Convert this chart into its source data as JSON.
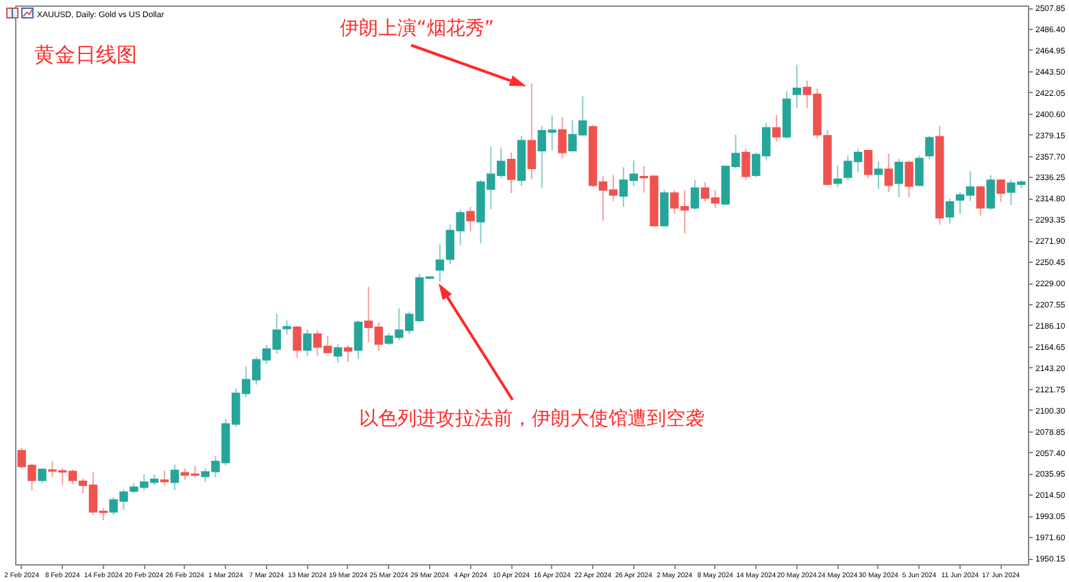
{
  "chart_data": {
    "type": "candlestick",
    "title": "XAUUSD, Daily: Gold vs US Dollar",
    "annotations": [
      "黄金日线图",
      "伊朗上演“烟花秀”",
      "以色列进攻拉法前，伊朗大使馆遭到空袭"
    ],
    "categories": [
      "2 Feb 2024",
      null,
      null,
      null,
      "8 Feb 2024",
      null,
      null,
      null,
      "14 Feb 2024",
      null,
      null,
      null,
      "20 Feb 2024",
      null,
      null,
      null,
      "26 Feb 2024",
      null,
      null,
      null,
      "1 Mar 2024",
      null,
      null,
      null,
      "7 Mar 2024",
      null,
      null,
      null,
      "13 Mar 2024",
      null,
      null,
      null,
      "19 Mar 2024",
      null,
      null,
      null,
      "25 Mar 2024",
      null,
      null,
      null,
      "29 Mar 2024",
      null,
      null,
      null,
      "4 Apr 2024",
      null,
      null,
      null,
      "10 Apr 2024",
      null,
      null,
      null,
      "16 Apr 2024",
      null,
      null,
      null,
      "22 Apr 2024",
      null,
      null,
      null,
      "26 Apr 2024",
      null,
      null,
      null,
      "2 May 2024",
      null,
      null,
      null,
      "8 May 2024",
      null,
      null,
      null,
      "14 May 2024",
      null,
      null,
      null,
      "20 May 2024",
      null,
      null,
      null,
      "24 May 2024",
      null,
      null,
      null,
      "30 May 2024",
      null,
      null,
      null,
      "5 Jun 2024",
      null,
      null,
      null,
      "11 Jun 2024",
      null,
      null,
      null,
      "17 Jun 2024",
      null,
      null
    ],
    "ohlc": [
      [
        2059,
        2062,
        2041,
        2043
      ],
      [
        2044,
        2046,
        2019,
        2029
      ],
      [
        2029,
        2041,
        2026,
        2040
      ],
      [
        2039.4,
        2048.2,
        2031.9,
        2038.5
      ],
      [
        2038.5,
        2041.2,
        2024.0,
        2037.5
      ],
      [
        2038,
        2040,
        2025,
        2029
      ],
      [
        2028,
        2031,
        2016,
        2024
      ],
      [
        2024,
        2037,
        1994,
        1997
      ],
      [
        1997.5,
        2000.8,
        1988.7,
        1996.6
      ],
      [
        1997,
        2012,
        1994,
        2009
      ],
      [
        2008,
        2020,
        1999,
        2017
      ],
      [
        2018,
        2026,
        2016,
        2022
      ],
      [
        2022,
        2035,
        2019,
        2027
      ],
      [
        2027,
        2035,
        2024,
        2030
      ],
      [
        2029.2,
        2038.9,
        2024.0,
        2027.8
      ],
      [
        2027,
        2045,
        2019,
        2039
      ],
      [
        2036.6,
        2041.2,
        2029.6,
        2034.3
      ],
      [
        2035.2,
        2043.6,
        2031.9,
        2034.3
      ],
      [
        2032.9,
        2041.2,
        2027.3,
        2037.5
      ],
      [
        2038,
        2054,
        2032,
        2048
      ],
      [
        2047,
        2091,
        2044,
        2086
      ],
      [
        2086,
        2122,
        2083,
        2117
      ],
      [
        2117,
        2144,
        2113,
        2131
      ],
      [
        2131,
        2154,
        2126,
        2151
      ],
      [
        2151,
        2166,
        2147,
        2162
      ],
      [
        2162,
        2198,
        2157,
        2181
      ],
      [
        2182.7,
        2191.0,
        2177.1,
        2184.5
      ],
      [
        2184,
        2185.5,
        2153,
        2161
      ],
      [
        2161,
        2182,
        2155,
        2177
      ],
      [
        2177,
        2181,
        2155,
        2164
      ],
      [
        2164.5,
        2175.2,
        2157.6,
        2158.5
      ],
      [
        2155,
        2167,
        2148,
        2163
      ],
      [
        2163,
        2166,
        2149,
        2160
      ],
      [
        2161,
        2191,
        2152,
        2189
      ],
      [
        2190,
        2225,
        2169,
        2184
      ],
      [
        2184,
        2189,
        2160,
        2167
      ],
      [
        2168,
        2178,
        2166,
        2175
      ],
      [
        2174,
        2203,
        2171,
        2181
      ],
      [
        2181,
        2200,
        2177,
        2197
      ],
      [
        2191,
        2238,
        2189,
        2234
      ],
      [
        2233.8,
        2235.7,
        2232.9,
        2234.8
      ],
      [
        2242,
        2268,
        2230,
        2252
      ],
      [
        2253,
        2288,
        2248,
        2282
      ],
      [
        2282,
        2303,
        2267,
        2300
      ],
      [
        2301,
        2306,
        2281,
        2292
      ],
      [
        2291,
        2333,
        2269,
        2331
      ],
      [
        2324,
        2367,
        2304,
        2339
      ],
      [
        2338,
        2366,
        2335,
        2352
      ],
      [
        2354,
        2361,
        2320,
        2334
      ],
      [
        2333,
        2378,
        2327,
        2373
      ],
      [
        2373,
        2431,
        2334,
        2345
      ],
      [
        2363,
        2388,
        2325,
        2383
      ],
      [
        2381.8,
        2398.5,
        2363.2,
        2383.6
      ],
      [
        2384,
        2397,
        2355,
        2361
      ],
      [
        2363,
        2394,
        2363,
        2379
      ],
      [
        2379,
        2418,
        2378,
        2393
      ],
      [
        2387,
        2389,
        2326,
        2328
      ],
      [
        2331,
        2337,
        2292,
        2323
      ],
      [
        2323,
        2338,
        2312,
        2318
      ],
      [
        2317,
        2346,
        2306,
        2333
      ],
      [
        2333,
        2353,
        2327,
        2339
      ],
      [
        2336.6,
        2347.3,
        2320.4,
        2335.7
      ],
      [
        2337,
        2338,
        2286,
        2287
      ],
      [
        2287,
        2323,
        2286,
        2320
      ],
      [
        2320,
        2323,
        2299,
        2305
      ],
      [
        2306,
        2323,
        2279,
        2303
      ],
      [
        2305,
        2333,
        2303,
        2325
      ],
      [
        2325,
        2331,
        2311,
        2315
      ],
      [
        2315,
        2323,
        2305,
        2310
      ],
      [
        2309,
        2348,
        2308,
        2347
      ],
      [
        2347,
        2379,
        2345,
        2360
      ],
      [
        2361,
        2365,
        2333,
        2337
      ],
      [
        2338,
        2361,
        2336,
        2359
      ],
      [
        2358,
        2391,
        2353,
        2386
      ],
      [
        2386,
        2399,
        2372,
        2377
      ],
      [
        2377,
        2423,
        2375,
        2415
      ],
      [
        2420,
        2450,
        2406,
        2426
      ],
      [
        2427,
        2434,
        2406,
        2420
      ],
      [
        2420,
        2426,
        2375,
        2379
      ],
      [
        2378,
        2384,
        2328,
        2329
      ],
      [
        2330,
        2348,
        2326,
        2334
      ],
      [
        2336,
        2358,
        2333,
        2352
      ],
      [
        2352,
        2365,
        2341,
        2361
      ],
      [
        2363,
        2363,
        2335,
        2339
      ],
      [
        2339,
        2352,
        2324,
        2344
      ],
      [
        2344,
        2360,
        2321,
        2328
      ],
      [
        2330,
        2355,
        2316,
        2351
      ],
      [
        2351,
        2353,
        2316,
        2327
      ],
      [
        2328,
        2358,
        2327,
        2355
      ],
      [
        2358,
        2378,
        2354,
        2376
      ],
      [
        2377,
        2388,
        2288,
        2295
      ],
      [
        2296,
        2315,
        2289,
        2311
      ],
      [
        2313,
        2321,
        2299,
        2318
      ],
      [
        2318,
        2342,
        2312,
        2326
      ],
      [
        2326,
        2327,
        2297,
        2305
      ],
      [
        2305,
        2338,
        2303,
        2333
      ],
      [
        2333,
        2334,
        2311,
        2320
      ],
      [
        2321,
        2334,
        2308,
        2330
      ],
      [
        2329,
        2333,
        2325,
        2331
      ]
    ],
    "colors": [
      "#ef5350",
      "#ef5350",
      "#26a69a",
      "#ef5350",
      "#ef5350",
      "#ef5350",
      "#ef5350",
      "#ef5350",
      "#ef5350",
      "#26a69a",
      "#26a69a",
      "#26a69a",
      "#26a69a",
      "#26a69a",
      "#ef5350",
      "#26a69a",
      "#ef5350",
      "#ef5350",
      "#26a69a",
      "#26a69a",
      "#26a69a",
      "#26a69a",
      "#26a69a",
      "#26a69a",
      "#26a69a",
      "#26a69a",
      "#26a69a",
      "#ef5350",
      "#26a69a",
      "#ef5350",
      "#ef5350",
      "#26a69a",
      "#ef5350",
      "#26a69a",
      "#ef5350",
      "#ef5350",
      "#26a69a",
      "#26a69a",
      "#26a69a",
      "#26a69a",
      "#26a69a",
      "#26a69a",
      "#26a69a",
      "#26a69a",
      "#ef5350",
      "#26a69a",
      "#26a69a",
      "#26a69a",
      "#ef5350",
      "#26a69a",
      "#ef5350",
      "#26a69a",
      "#26a69a",
      "#ef5350",
      "#26a69a",
      "#26a69a",
      "#ef5350",
      "#ef5350",
      "#ef5350",
      "#26a69a",
      "#26a69a",
      "#ef5350",
      "#ef5350",
      "#26a69a",
      "#ef5350",
      "#ef5350",
      "#26a69a",
      "#ef5350",
      "#ef5350",
      "#26a69a",
      "#26a69a",
      "#ef5350",
      "#26a69a",
      "#26a69a",
      "#ef5350",
      "#26a69a",
      "#26a69a",
      "#ef5350",
      "#ef5350",
      "#ef5350",
      "#26a69a",
      "#26a69a",
      "#26a69a",
      "#ef5350",
      "#26a69a",
      "#ef5350",
      "#26a69a",
      "#ef5350",
      "#26a69a",
      "#26a69a",
      "#ef5350",
      "#26a69a",
      "#26a69a",
      "#26a69a",
      "#ef5350",
      "#26a69a",
      "#ef5350",
      "#26a69a",
      "#26a69a"
    ],
    "ylim": [
      1944,
      2510
    ],
    "yticks": [
      2507.85,
      {
        "value": 2486.4,
        "label": "2486.40"
      },
      2464.95,
      {
        "value": 2443.5,
        "label": "2443.50"
      },
      2422.05,
      {
        "value": 2400.6,
        "label": "2400.60"
      },
      2379.15,
      {
        "value": 2357.7,
        "label": "2357.70"
      },
      2336.25,
      {
        "value": 2314.8,
        "label": "2314.80"
      },
      2293.35,
      {
        "value": 2271.9,
        "label": "2271.90"
      },
      2250.45,
      {
        "value": 2229,
        "label": "2229.00"
      },
      2207.55,
      {
        "value": 2186.1,
        "label": "2186.10"
      },
      2164.65,
      {
        "value": 2143.2,
        "label": "2143.20"
      },
      2121.75,
      {
        "value": 2100.3,
        "label": "2100.30"
      },
      2078.85,
      {
        "value": 2057.4,
        "label": "2057.40"
      },
      2035.95,
      {
        "value": 2014.5,
        "label": "2014.50"
      },
      1993.05,
      {
        "value": 1971.6,
        "label": "1971.60"
      },
      1950.15
    ],
    "grid": false
  }
}
